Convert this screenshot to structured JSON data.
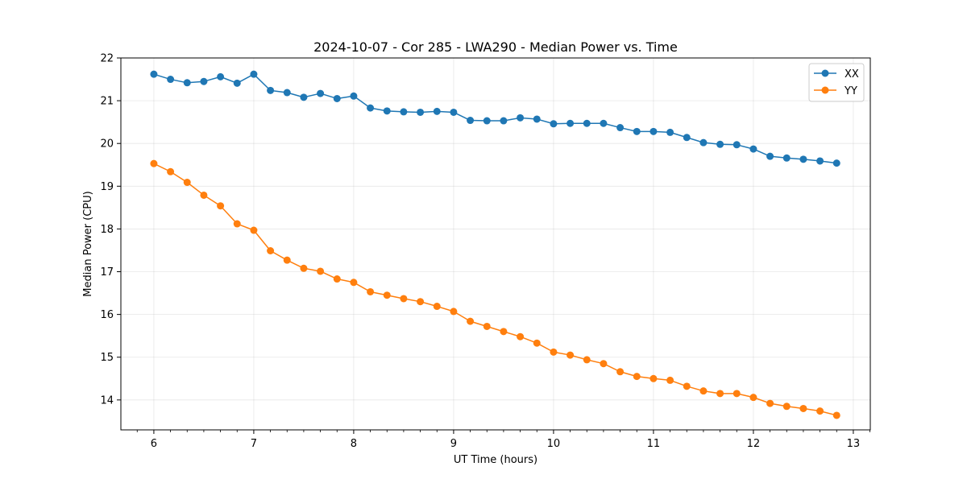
{
  "chart_data": {
    "type": "line",
    "title": "2024-10-07 - Cor 285 - LWA290 - Median Power vs. Time",
    "xlabel": "UT Time (hours)",
    "ylabel": "Median Power (CPU)",
    "xlim": [
      5.67,
      13.17
    ],
    "ylim": [
      13.3,
      22.0
    ],
    "xticks": [
      6,
      7,
      8,
      9,
      10,
      11,
      12,
      13
    ],
    "yticks": [
      14,
      15,
      16,
      17,
      18,
      19,
      20,
      21,
      22
    ],
    "grid": true,
    "legend_position": "top-right",
    "x": [
      6.0,
      6.1667,
      6.3333,
      6.5,
      6.6667,
      6.8333,
      7.0,
      7.1667,
      7.3333,
      7.5,
      7.6667,
      7.8333,
      8.0,
      8.1667,
      8.3333,
      8.5,
      8.6667,
      8.8333,
      9.0,
      9.1667,
      9.3333,
      9.5,
      9.6667,
      9.8333,
      10.0,
      10.1667,
      10.3333,
      10.5,
      10.6667,
      10.8333,
      11.0,
      11.1667,
      11.3333,
      11.5,
      11.6667,
      11.8333,
      12.0,
      12.1667,
      12.3333,
      12.5,
      12.6667,
      12.8333
    ],
    "series": [
      {
        "name": "XX",
        "color": "#1f77b4",
        "values": [
          21.62,
          21.5,
          21.42,
          21.45,
          21.56,
          21.41,
          21.62,
          21.24,
          21.19,
          21.08,
          21.17,
          21.05,
          21.11,
          20.83,
          20.76,
          20.74,
          20.73,
          20.75,
          20.73,
          20.54,
          20.53,
          20.53,
          20.6,
          20.57,
          20.46,
          20.47,
          20.47,
          20.47,
          20.37,
          20.28,
          20.28,
          20.26,
          20.14,
          20.02,
          19.98,
          19.97,
          19.87,
          19.7,
          19.66,
          19.63,
          19.59,
          19.54
        ]
      },
      {
        "name": "YY",
        "color": "#ff7f0e",
        "values": [
          19.53,
          19.34,
          19.09,
          18.79,
          18.54,
          18.12,
          17.97,
          17.49,
          17.27,
          17.08,
          17.01,
          16.83,
          16.75,
          16.53,
          16.45,
          16.37,
          16.3,
          16.19,
          16.07,
          15.84,
          15.72,
          15.6,
          15.48,
          15.33,
          15.12,
          15.05,
          14.94,
          14.85,
          14.66,
          14.55,
          14.5,
          14.46,
          14.32,
          14.21,
          14.15,
          14.15,
          14.06,
          13.92,
          13.85,
          13.8,
          13.74,
          13.64
        ]
      }
    ]
  }
}
